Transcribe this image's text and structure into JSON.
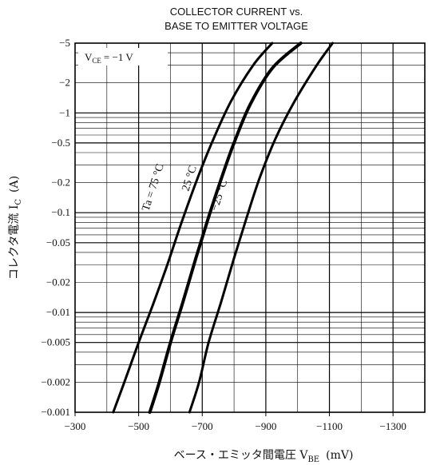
{
  "chart_data": {
    "type": "line",
    "title_line1": "COLLECTOR CURRENT vs.",
    "title_line2": "BASE TO EMITTER VOLTAGE",
    "xlabel": "ベース・エミッタ間電圧 V",
    "xlabel_sub": "BE",
    "xlabel_unit": "(mV)",
    "ylabel": "コレクタ電流 I",
    "ylabel_sub": "C",
    "ylabel_unit": "(A)",
    "condition": "V",
    "condition_sub": "CE",
    "condition_value": "= −1 V",
    "x_scale": "linear",
    "y_scale": "log",
    "xlim": [
      -300,
      -1400
    ],
    "ylim": [
      -0.001,
      -5
    ],
    "x_ticks": [
      -300,
      -500,
      -700,
      -900,
      -1100,
      -1300
    ],
    "x_tick_labels": [
      "−300",
      "−500",
      "−700",
      "−900",
      "−1100",
      "−1300"
    ],
    "y_ticks": [
      -5,
      -2,
      -1,
      -0.5,
      -0.2,
      -0.1,
      -0.05,
      -0.02,
      -0.01,
      -0.005,
      -0.002,
      -0.001
    ],
    "y_tick_labels": [
      "−5",
      "−2",
      "−1",
      "−0.5",
      "−0.2",
      "−0.1",
      "−0.05",
      "−0.02",
      "−0.01",
      "−0.005",
      "−0.002",
      "−0.001"
    ],
    "grid": true,
    "series": [
      {
        "name": "Ta = 75 °C",
        "x": [
          -420,
          -455,
          -500,
          -545,
          -590,
          -635,
          -680,
          -730,
          -790,
          -860,
          -920
        ],
        "y": [
          -0.001,
          -0.002,
          -0.005,
          -0.012,
          -0.03,
          -0.08,
          -0.2,
          -0.5,
          -1.3,
          -3.0,
          -5
        ]
      },
      {
        "name": "25 °C",
        "x": [
          -535,
          -565,
          -600,
          -640,
          -680,
          -720,
          -760,
          -800,
          -850,
          -920,
          -1010
        ],
        "y": [
          -0.001,
          -0.002,
          -0.005,
          -0.013,
          -0.035,
          -0.09,
          -0.22,
          -0.5,
          -1.2,
          -2.8,
          -5
        ]
      },
      {
        "name": "−25 °C",
        "x": [
          -660,
          -690,
          -720,
          -760,
          -800,
          -840,
          -880,
          -930,
          -990,
          -1060,
          -1110
        ],
        "y": [
          -0.001,
          -0.002,
          -0.005,
          -0.013,
          -0.035,
          -0.09,
          -0.22,
          -0.55,
          -1.3,
          -3.0,
          -5
        ]
      }
    ]
  }
}
